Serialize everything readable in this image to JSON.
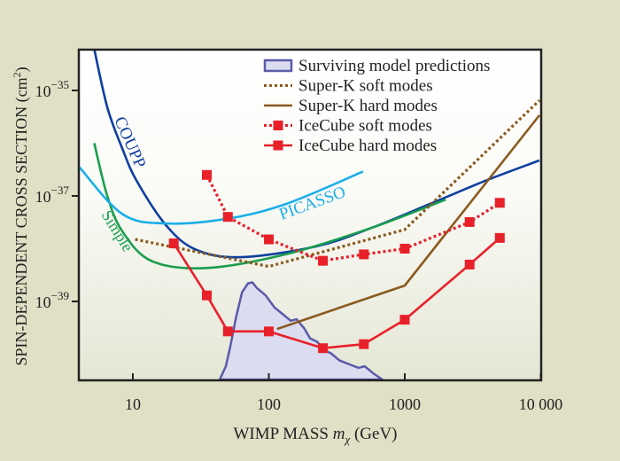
{
  "chart_data": {
    "type": "line",
    "xlabel": "WIMP MASS m_χ (GeV)",
    "xlabel_parts": {
      "main": "WIMP MASS ",
      "var": "m",
      "sub": "χ",
      "unit": " (GeV)"
    },
    "ylabel": "SPIN-DEPENDENT CROSS SECTION (cm²)",
    "ylabel_parts": {
      "main": "SPIN-DEPENDENT CROSS SECTION (cm",
      "sup": "2",
      "end": ")"
    },
    "x_scale": "log",
    "y_scale": "log",
    "xlim": [
      4,
      10000
    ],
    "ylim": [
      3.3e-41,
      6e-35
    ],
    "x_ticks": [
      {
        "value": 10,
        "label": "10"
      },
      {
        "value": 100,
        "label": "100"
      },
      {
        "value": 1000,
        "label": "1000"
      },
      {
        "value": 10000,
        "label": "10 000"
      }
    ],
    "y_ticks": [
      {
        "value": 1e-35,
        "base": "10",
        "exp": "−35"
      },
      {
        "value": 1e-37,
        "base": "10",
        "exp": "−37"
      },
      {
        "value": 1e-39,
        "base": "10",
        "exp": "−39"
      }
    ],
    "grid": false,
    "legend_position": "top-right",
    "legend": [
      {
        "label": "Surviving model predictions",
        "series": "surviving"
      },
      {
        "label": "Super-K soft modes",
        "series": "superk_soft"
      },
      {
        "label": "Super-K hard modes",
        "series": "superk_hard"
      },
      {
        "label": "IceCube soft modes",
        "series": "icecube_soft"
      },
      {
        "label": "IceCube hard modes",
        "series": "icecube_hard"
      }
    ],
    "series": [
      {
        "id": "surviving",
        "name": "Surviving model predictions",
        "kind": "area",
        "color": "#5a5aaa",
        "fill": "#dcdcf0",
        "x": [
          43.6,
          48.3,
          52.1,
          57.6,
          63.6,
          70.3,
          75.7,
          81.6,
          94.8,
          110,
          128,
          145,
          160,
          182,
          201,
          228,
          252,
          285,
          331,
          405,
          458,
          507,
          589,
          684
        ],
        "y": [
          3.3e-41,
          5.9e-41,
          1.4e-40,
          5.2e-40,
          1.5e-39,
          2.2e-39,
          2.3e-39,
          1.8e-39,
          1.3e-39,
          7.7e-40,
          5.6e-40,
          4.3e-40,
          4.6e-40,
          3.1e-40,
          2e-40,
          1.7e-40,
          1.2e-40,
          1.05e-40,
          7.6e-41,
          6.2e-41,
          5.5e-41,
          5.9e-41,
          4.3e-41,
          3.3e-41
        ]
      },
      {
        "id": "superk_soft",
        "name": "Super-K soft modes",
        "kind": "dotted",
        "color": "#8b5a1e",
        "x": [
          10.4,
          100,
          1000,
          9800
        ],
        "y": [
          1.5e-38,
          4.6e-39,
          2.3e-38,
          6.5e-36
        ]
      },
      {
        "id": "superk_hard",
        "name": "Super-K hard modes",
        "kind": "solid",
        "color": "#8b5a1e",
        "x": [
          115,
          1000,
          9800
        ],
        "y": [
          3e-40,
          2e-39,
          3.4e-36
        ]
      },
      {
        "id": "icecube_soft",
        "name": "IceCube soft modes",
        "kind": "dotted-markers",
        "color": "#e8202a",
        "x": [
          35,
          50,
          100,
          250,
          500,
          1000,
          3000,
          5000
        ],
        "y": [
          2.5e-37,
          4e-38,
          1.5e-38,
          5.9e-39,
          7.8e-39,
          1e-38,
          3.2e-38,
          7.4e-38
        ]
      },
      {
        "id": "icecube_hard",
        "name": "IceCube hard modes",
        "kind": "solid-markers",
        "color": "#e8202a",
        "x": [
          20,
          35,
          50,
          100,
          250,
          500,
          1000,
          3000,
          5000
        ],
        "y": [
          1.26e-38,
          1.3e-39,
          2.7e-40,
          2.7e-40,
          1.3e-40,
          1.55e-40,
          4.5e-40,
          5e-39,
          1.6e-38
        ]
      },
      {
        "id": "coupp",
        "name": "COUPP",
        "kind": "curve",
        "color": "#0d3f9f",
        "x": [
          5.19,
          6.5,
          8.4,
          10.7,
          17.7,
          29.1,
          61.7,
          222,
          574,
          1640,
          4040,
          9770
        ],
        "y": [
          6.2e-35,
          4.7e-36,
          7.7e-37,
          1.9e-37,
          2.7e-38,
          9.6e-39,
          6.9e-39,
          1.1e-38,
          2.5e-38,
          7.6e-38,
          2e-37,
          4.7e-37
        ]
      },
      {
        "id": "simple",
        "name": "Simple",
        "kind": "curve",
        "color": "#1a9e4e",
        "x": [
          5.2,
          6.5,
          8.4,
          13.8,
          34.9,
          135,
          574,
          2000
        ],
        "y": [
          1e-36,
          9.8e-38,
          2.1e-38,
          5.8e-39,
          4.3e-39,
          7.9e-39,
          2.5e-38,
          8.5e-38
        ]
      },
      {
        "id": "picasso",
        "name": "PICASSO",
        "kind": "curve",
        "color": "#1aaee8",
        "x": [
          4.05,
          8.4,
          17.7,
          49.5,
          135,
          494
        ],
        "y": [
          3.5e-37,
          4.5e-38,
          3e-38,
          3.7e-38,
          7.1e-38,
          2.9e-37
        ]
      }
    ],
    "curve_labels": [
      {
        "text": "COUPP",
        "series": "coupp"
      },
      {
        "text": "PICASSO",
        "series": "picasso"
      },
      {
        "text": "Simple",
        "series": "simple"
      }
    ],
    "colors": {
      "background": "#dfe0c5",
      "plot_top": "#ffffff",
      "plot_bottom": "#e4e6d4",
      "axis": "#222222"
    }
  }
}
